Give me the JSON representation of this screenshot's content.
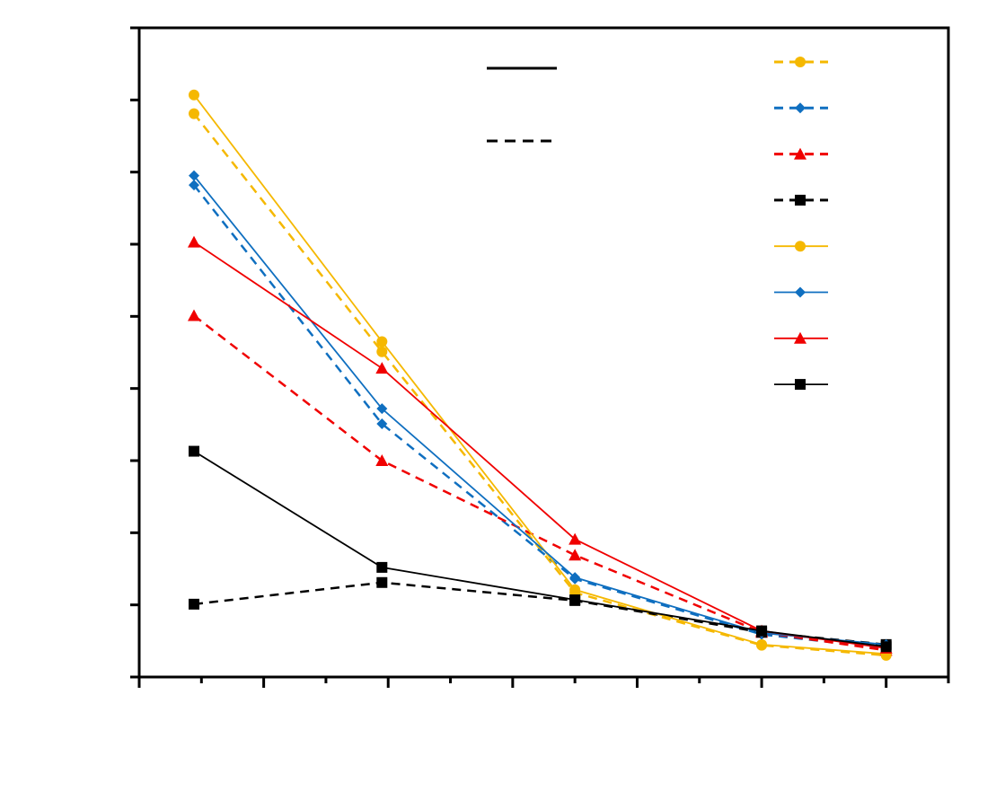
{
  "chart_data": {
    "type": "line",
    "x": [
      0.44,
      1.95,
      3.5,
      5,
      6
    ],
    "xlim": [
      0,
      6.5
    ],
    "xticks": [
      0,
      1,
      2,
      3,
      4,
      5,
      6
    ],
    "xminor_ticks": [
      0.5,
      1.5,
      2.5,
      3.5,
      4.5,
      5.5,
      6.5
    ],
    "ylim": [
      0,
      9
    ],
    "yticks": [
      0,
      1,
      2,
      3,
      4,
      5,
      6,
      7,
      8,
      9
    ],
    "legend": "upper right",
    "series": [
      {
        "color": "#f5b800",
        "dash": true,
        "marker": "circle",
        "values": [
          7.81,
          4.51,
          1.17,
          0.44,
          0.3
        ]
      },
      {
        "color": "#0f6fc0",
        "dash": true,
        "marker": "diamond",
        "values": [
          6.82,
          3.51,
          1.36,
          0.59,
          0.4
        ]
      },
      {
        "color": "#f00000",
        "dash": true,
        "marker": "triangle",
        "values": [
          5.01,
          3.0,
          1.69,
          0.62,
          0.37
        ]
      },
      {
        "color": "#000000",
        "dash": true,
        "marker": "square",
        "values": [
          1.01,
          1.31,
          1.06,
          0.62,
          0.45
        ]
      },
      {
        "color": "#f5b800",
        "dash": false,
        "marker": "circle",
        "values": [
          8.07,
          4.65,
          1.21,
          0.45,
          0.32
        ]
      },
      {
        "color": "#0f6fc0",
        "dash": false,
        "marker": "diamond",
        "values": [
          6.95,
          3.72,
          1.38,
          0.61,
          0.45
        ]
      },
      {
        "color": "#f00000",
        "dash": false,
        "marker": "triangle",
        "values": [
          6.03,
          4.28,
          1.91,
          0.64,
          0.4
        ]
      },
      {
        "color": "#000000",
        "dash": false,
        "marker": "square",
        "values": [
          3.13,
          1.52,
          1.07,
          0.64,
          0.42
        ]
      }
    ]
  }
}
